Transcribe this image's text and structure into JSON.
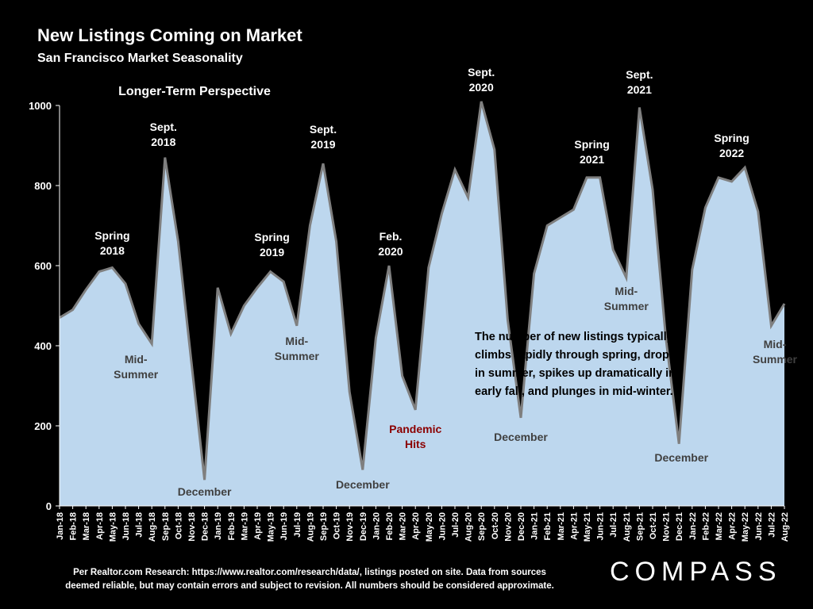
{
  "header": {
    "title": "New Listings Coming on Market",
    "subtitle": "San Francisco Market Seasonality"
  },
  "footer": {
    "note_line1": "Per Realtor.com Research:  https://www.realtor.com/research/data/, listings posted on site. Data from sources",
    "note_line2": "deemed reliable, but may contain errors and subject to revision. All numbers should be considered approximate.",
    "brand": "COMPASS"
  },
  "colors": {
    "background": "#000000",
    "area_fill": "#bdd7ee",
    "area_stroke": "#7f7f7f",
    "label_white": "#ffffff",
    "label_gray": "#404040",
    "label_red": "#8b0000",
    "callout_text": "#000000"
  },
  "chart_data": {
    "type": "area",
    "title": "Longer-Term Perspective",
    "ylim": [
      0,
      1000
    ],
    "yticks": [
      0,
      200,
      400,
      600,
      800,
      1000
    ],
    "categories": [
      "Jan-18",
      "Feb-18",
      "Mar-18",
      "Apr-18",
      "May-18",
      "Jun-18",
      "Jul-18",
      "Aug-18",
      "Sep-18",
      "Oct-18",
      "Nov-18",
      "Dec-18",
      "Jan-19",
      "Feb-19",
      "Mar-19",
      "Apr-19",
      "May-19",
      "Jun-19",
      "Jul-19",
      "Aug-19",
      "Sep-19",
      "Oct-19",
      "Nov-19",
      "Dec-19",
      "Jan-20",
      "Feb-20",
      "Mar-20",
      "Apr-20",
      "May-20",
      "Jun-20",
      "Jul-20",
      "Aug-20",
      "Sep-20",
      "Oct-20",
      "Nov-20",
      "Dec-20",
      "Jan-21",
      "Feb-21",
      "Mar-21",
      "Apr-21",
      "May-21",
      "Jun-21",
      "Jul-21",
      "Aug-21",
      "Sep-21",
      "Oct-21",
      "Nov-21",
      "Dec-21",
      "Jan-22",
      "Feb-22",
      "Mar-22",
      "Apr-22",
      "May-22",
      "Jun-22",
      "Jul-22",
      "Aug-22"
    ],
    "values": [
      470,
      490,
      540,
      585,
      595,
      555,
      455,
      405,
      870,
      660,
      360,
      65,
      545,
      430,
      500,
      545,
      585,
      560,
      450,
      700,
      855,
      660,
      285,
      90,
      420,
      600,
      325,
      240,
      595,
      730,
      840,
      770,
      1010,
      890,
      465,
      220,
      580,
      700,
      720,
      740,
      820,
      820,
      640,
      570,
      995,
      790,
      420,
      155,
      590,
      745,
      820,
      810,
      845,
      735,
      450,
      505
    ],
    "annotations": [
      {
        "lines": [
          "Spring",
          "2018"
        ],
        "index": 4,
        "style": "white"
      },
      {
        "lines": [
          "Sept.",
          "2018"
        ],
        "index": 8,
        "style": "white"
      },
      {
        "lines": [
          "Mid-",
          "Summer"
        ],
        "index": 7,
        "style": "gray"
      },
      {
        "lines": [
          "December"
        ],
        "index": 11,
        "style": "gray"
      },
      {
        "lines": [
          "Spring",
          "2019"
        ],
        "index": 16,
        "style": "white"
      },
      {
        "lines": [
          "Sept.",
          "2019"
        ],
        "index": 20,
        "style": "white"
      },
      {
        "lines": [
          "Mid-",
          "Summer"
        ],
        "index": 18,
        "style": "gray"
      },
      {
        "lines": [
          "December"
        ],
        "index": 23,
        "style": "gray"
      },
      {
        "lines": [
          "Feb.",
          "2020"
        ],
        "index": 25,
        "style": "white"
      },
      {
        "lines": [
          "Pandemic",
          "Hits"
        ],
        "index": 27,
        "style": "red"
      },
      {
        "lines": [
          "Sept.",
          "2020"
        ],
        "index": 32,
        "style": "white"
      },
      {
        "lines": [
          "December"
        ],
        "index": 35,
        "style": "gray"
      },
      {
        "lines": [
          "Spring",
          "2021"
        ],
        "index": 41,
        "style": "white"
      },
      {
        "lines": [
          "Sept.",
          "2021"
        ],
        "index": 44,
        "style": "white"
      },
      {
        "lines": [
          "Mid-",
          "Summer"
        ],
        "index": 43,
        "style": "gray"
      },
      {
        "lines": [
          "December"
        ],
        "index": 47,
        "style": "gray"
      },
      {
        "lines": [
          "Spring",
          "2022"
        ],
        "index": 51,
        "style": "white"
      },
      {
        "lines": [
          "Mid-",
          "Summer"
        ],
        "index": 55,
        "style": "gray"
      }
    ],
    "callout": [
      "The number of new listings typically",
      "climbs rapidly through spring, drops",
      "in summer, spikes up dramatically in",
      "early fall, and plunges in mid-winter."
    ]
  }
}
